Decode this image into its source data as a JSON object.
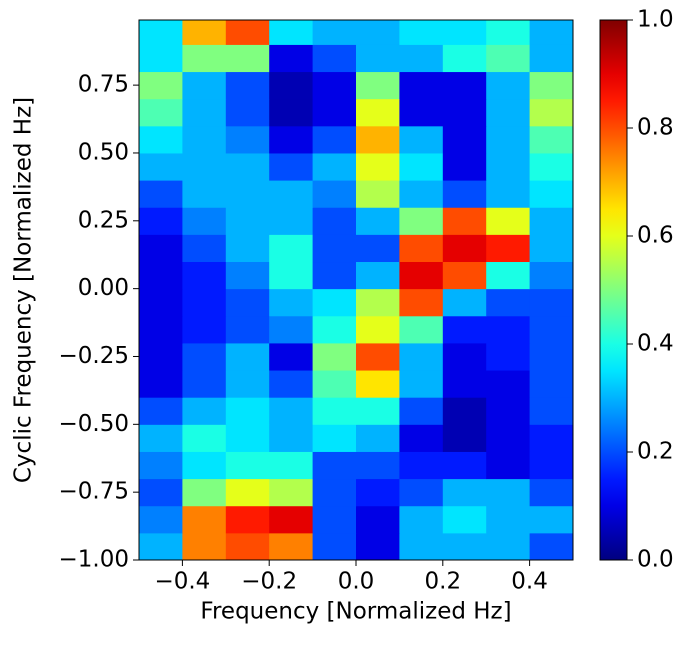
{
  "chart_data": {
    "type": "heatmap",
    "xlabel": "Frequency [Normalized Hz]",
    "ylabel": "Cyclic Frequency [Normalized Hz]",
    "colormap": "jet",
    "xlim": [
      -0.5,
      0.5
    ],
    "ylim": [
      -1.0,
      0.99
    ],
    "xbins": [
      -0.5,
      -0.4,
      -0.3,
      -0.2,
      -0.1,
      0.0,
      0.1,
      0.2,
      0.3,
      0.4,
      0.5
    ],
    "ybins": [
      -1.0,
      -0.9,
      -0.8,
      -0.7,
      -0.6,
      -0.5,
      -0.4,
      -0.3,
      -0.2,
      -0.1,
      0.0,
      0.1,
      0.2,
      0.3,
      0.4,
      0.5,
      0.6,
      0.7,
      0.8,
      0.9,
      0.99
    ],
    "values": [
      [
        0.3,
        0.75,
        0.8,
        0.75,
        0.2,
        0.1,
        0.3,
        0.3,
        0.3,
        0.2
      ],
      [
        0.25,
        0.75,
        0.85,
        0.9,
        0.2,
        0.1,
        0.3,
        0.35,
        0.3,
        0.3
      ],
      [
        0.2,
        0.5,
        0.6,
        0.55,
        0.2,
        0.15,
        0.2,
        0.3,
        0.3,
        0.2
      ],
      [
        0.25,
        0.35,
        0.4,
        0.4,
        0.2,
        0.2,
        0.15,
        0.15,
        0.1,
        0.15
      ],
      [
        0.3,
        0.4,
        0.35,
        0.3,
        0.35,
        0.3,
        0.1,
        0.05,
        0.1,
        0.15
      ],
      [
        0.2,
        0.3,
        0.35,
        0.3,
        0.4,
        0.4,
        0.2,
        0.05,
        0.1,
        0.2
      ],
      [
        0.1,
        0.2,
        0.3,
        0.2,
        0.45,
        0.65,
        0.3,
        0.1,
        0.1,
        0.2
      ],
      [
        0.1,
        0.2,
        0.3,
        0.1,
        0.5,
        0.8,
        0.3,
        0.1,
        0.15,
        0.2
      ],
      [
        0.1,
        0.15,
        0.2,
        0.25,
        0.4,
        0.6,
        0.45,
        0.15,
        0.15,
        0.2
      ],
      [
        0.1,
        0.15,
        0.2,
        0.3,
        0.35,
        0.55,
        0.8,
        0.3,
        0.2,
        0.2
      ],
      [
        0.1,
        0.15,
        0.25,
        0.4,
        0.2,
        0.3,
        0.9,
        0.8,
        0.4,
        0.25
      ],
      [
        0.1,
        0.2,
        0.3,
        0.4,
        0.2,
        0.2,
        0.8,
        0.9,
        0.85,
        0.3
      ],
      [
        0.15,
        0.25,
        0.3,
        0.3,
        0.2,
        0.3,
        0.5,
        0.8,
        0.6,
        0.3
      ],
      [
        0.2,
        0.3,
        0.3,
        0.3,
        0.25,
        0.55,
        0.3,
        0.2,
        0.3,
        0.35
      ],
      [
        0.3,
        0.3,
        0.3,
        0.2,
        0.3,
        0.6,
        0.35,
        0.1,
        0.3,
        0.4
      ],
      [
        0.35,
        0.3,
        0.25,
        0.1,
        0.2,
        0.7,
        0.3,
        0.1,
        0.3,
        0.45
      ],
      [
        0.45,
        0.3,
        0.2,
        0.05,
        0.1,
        0.6,
        0.1,
        0.1,
        0.3,
        0.55
      ],
      [
        0.5,
        0.3,
        0.2,
        0.05,
        0.1,
        0.5,
        0.1,
        0.1,
        0.3,
        0.5
      ],
      [
        0.35,
        0.5,
        0.5,
        0.1,
        0.2,
        0.3,
        0.3,
        0.4,
        0.45,
        0.3
      ],
      [
        0.35,
        0.7,
        0.8,
        0.35,
        0.3,
        0.3,
        0.35,
        0.35,
        0.4,
        0.3
      ]
    ],
    "xticks": [
      {
        "value": -0.4,
        "label": "−0.4"
      },
      {
        "value": -0.2,
        "label": "−0.2"
      },
      {
        "value": 0.0,
        "label": "0.0"
      },
      {
        "value": 0.2,
        "label": "0.2"
      },
      {
        "value": 0.4,
        "label": "0.4"
      }
    ],
    "yticks": [
      {
        "value": -1.0,
        "label": "−1.00"
      },
      {
        "value": -0.75,
        "label": "−0.75"
      },
      {
        "value": -0.5,
        "label": "−0.50"
      },
      {
        "value": -0.25,
        "label": "−0.25"
      },
      {
        "value": 0.0,
        "label": "0.00"
      },
      {
        "value": 0.25,
        "label": "0.25"
      },
      {
        "value": 0.5,
        "label": "0.50"
      },
      {
        "value": 0.75,
        "label": "0.75"
      }
    ],
    "clim": [
      0,
      1
    ],
    "cticks": [
      {
        "value": 0,
        "label": "0.0"
      },
      {
        "value": 0.2,
        "label": "0.2"
      },
      {
        "value": 0.4,
        "label": "0.4"
      },
      {
        "value": 0.6,
        "label": "0.6"
      },
      {
        "value": 0.8,
        "label": "0.8"
      },
      {
        "value": 1,
        "label": "1.0"
      }
    ]
  }
}
